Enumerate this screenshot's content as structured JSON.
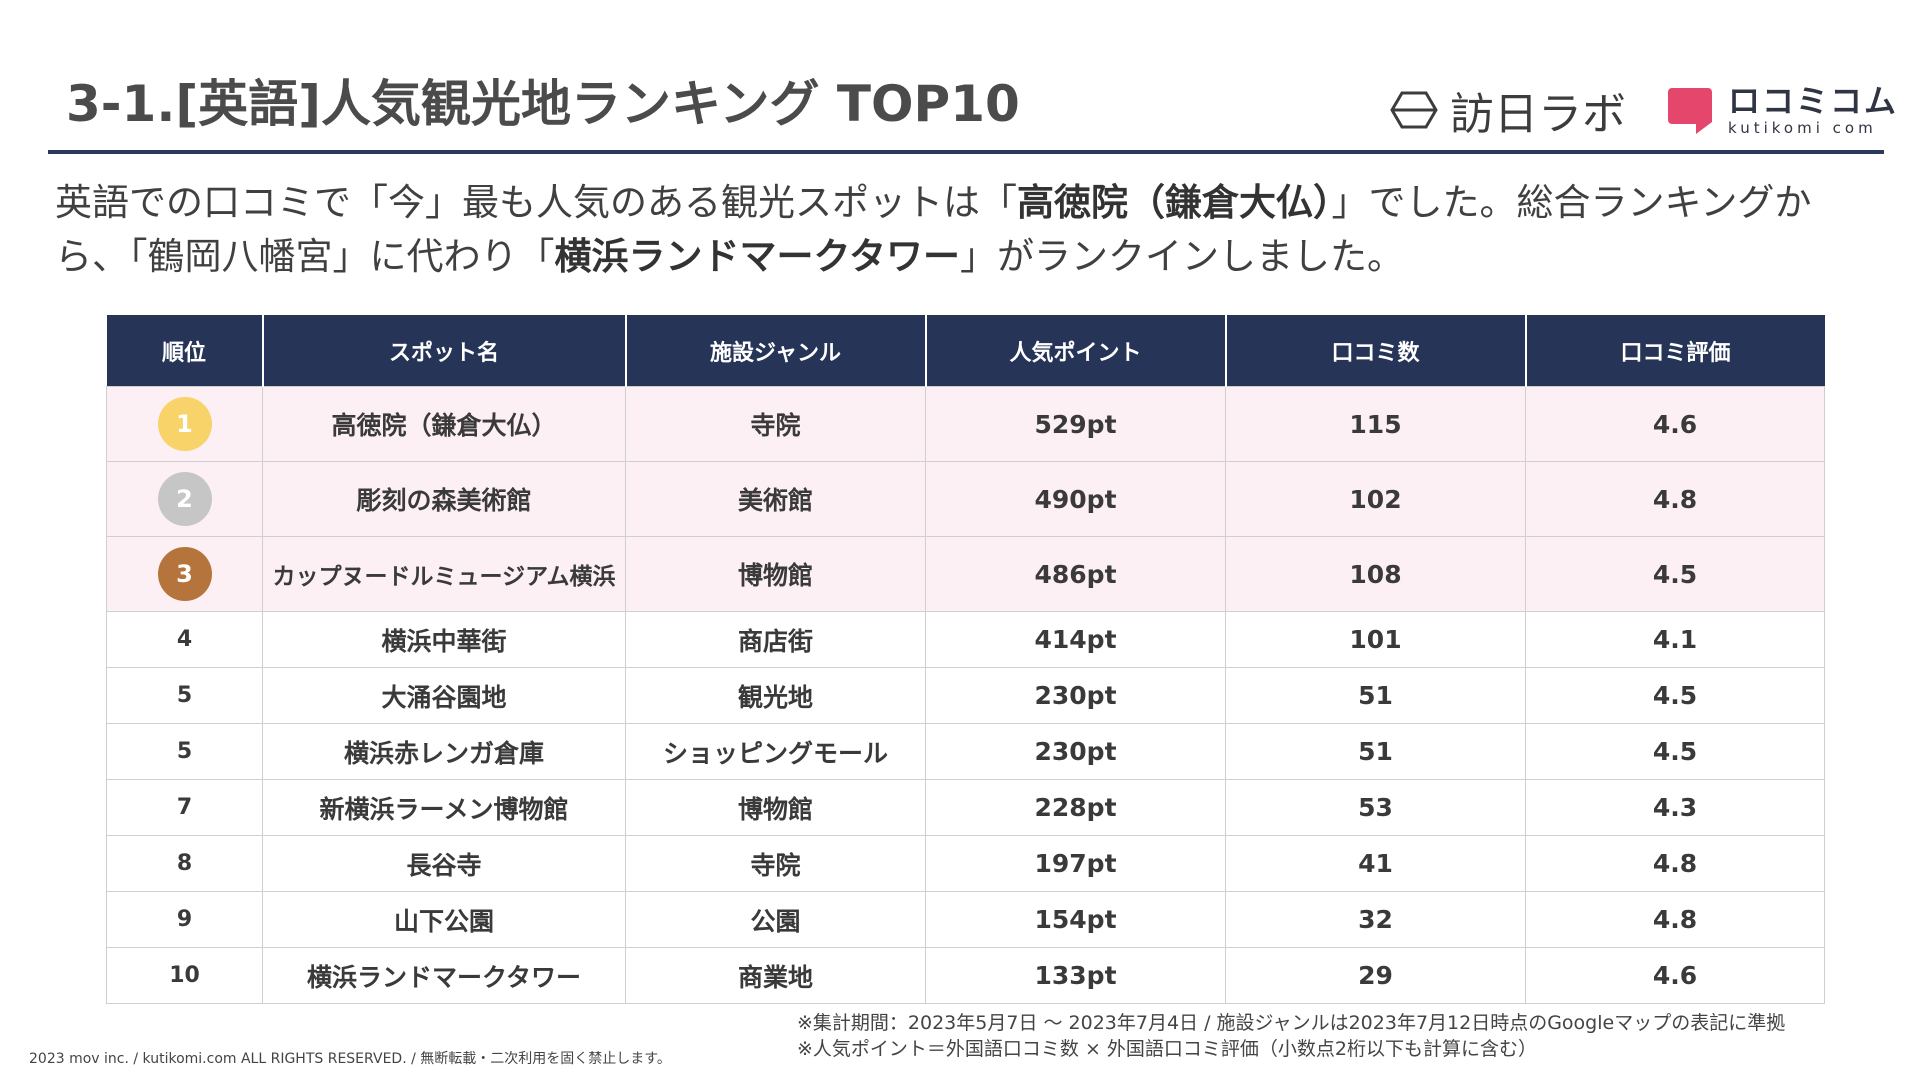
{
  "title": "3-1.[英語]人気観光地ランキング TOP10",
  "logos": {
    "houjichi": "訪日ラボ",
    "kutikomi_main": "ロコミコム",
    "kutikomi_sub": "kutikomi com"
  },
  "lead": {
    "t1": "英語での口コミで「今」最も人気のある観光スポットは「",
    "b1": "高徳院（鎌倉大仏）",
    "t2": "」でした。総合ランキングから、「鶴岡八幡宮」に代わり「",
    "b2": "横浜ランドマークタワー",
    "t3": "」がランクインしました。"
  },
  "table": {
    "headers": [
      "順位",
      "スポット名",
      "施設ジャンル",
      "人気ポイント",
      "口コミ数",
      "口コミ評価"
    ],
    "rows": [
      {
        "rank": "1",
        "name": "高徳院（鎌倉大仏）",
        "genre": "寺院",
        "points": "529pt",
        "reviews": "115",
        "rating": "4.6"
      },
      {
        "rank": "2",
        "name": "彫刻の森美術館",
        "genre": "美術館",
        "points": "490pt",
        "reviews": "102",
        "rating": "4.8"
      },
      {
        "rank": "3",
        "name": "カップヌードルミュージアム横浜",
        "genre": "博物館",
        "points": "486pt",
        "reviews": "108",
        "rating": "4.5"
      },
      {
        "rank": "4",
        "name": "横浜中華街",
        "genre": "商店街",
        "points": "414pt",
        "reviews": "101",
        "rating": "4.1"
      },
      {
        "rank": "5",
        "name": "大涌谷園地",
        "genre": "観光地",
        "points": "230pt",
        "reviews": "51",
        "rating": "4.5"
      },
      {
        "rank": "5",
        "name": "横浜赤レンガ倉庫",
        "genre": "ショッピングモール",
        "points": "230pt",
        "reviews": "51",
        "rating": "4.5"
      },
      {
        "rank": "7",
        "name": "新横浜ラーメン博物館",
        "genre": "博物館",
        "points": "228pt",
        "reviews": "53",
        "rating": "4.3"
      },
      {
        "rank": "8",
        "name": "長谷寺",
        "genre": "寺院",
        "points": "197pt",
        "reviews": "41",
        "rating": "4.8"
      },
      {
        "rank": "9",
        "name": "山下公園",
        "genre": "公園",
        "points": "154pt",
        "reviews": "32",
        "rating": "4.8"
      },
      {
        "rank": "10",
        "name": "横浜ランドマークタワー",
        "genre": "商業地",
        "points": "133pt",
        "reviews": "29",
        "rating": "4.6"
      }
    ]
  },
  "medal_colors": {
    "gold": "#f7d36a",
    "silver": "#c6c6c6",
    "bronze": "#b5743c"
  },
  "notes": {
    "line1": "※集計期間：2023年5月7日 〜 2023年7月4日 / 施設ジャンルは2023年7月12日時点のGoogleマップの表記に準拠",
    "line2": "※人気ポイント＝外国語口コミ数 × 外国語口コミ評価（小数点2桁以下も計算に含む）"
  },
  "copyright": "2023 mov inc. / kutikomi.com ALL RIGHTS RESERVED. / 無断転載・二次利用を固く禁止します。"
}
